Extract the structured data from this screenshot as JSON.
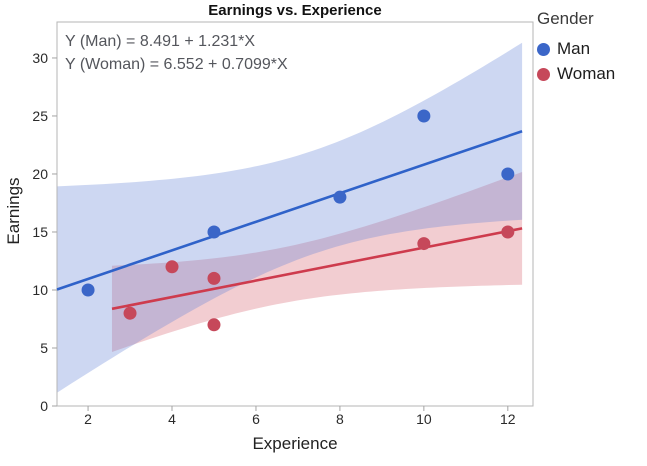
{
  "chart_data": {
    "type": "scatter",
    "title": "Earnings vs. Experience",
    "xlabel": "Experience",
    "ylabel": "Earnings",
    "legend_title": "Gender",
    "legend_position": "right",
    "grid": false,
    "xlim": [
      1.26,
      12.6
    ],
    "ylim": [
      0,
      33.1
    ],
    "x_ticks": [
      2,
      4,
      6,
      8,
      10,
      12
    ],
    "y_ticks": [
      0,
      5,
      10,
      15,
      20,
      25,
      30
    ],
    "annotations": [
      "Y (Man) = 8.491 + 1.231*X",
      "Y (Woman) = 6.552 + 0.7099*X"
    ],
    "frame_color": "#b5b5b5",
    "tick_color": "#a3a3a3",
    "tick_label_color": "#2a2a2a",
    "series": [
      {
        "name": "Man",
        "color": "#3B66C8",
        "line_color": "#2F62C9",
        "band_color": "rgba(99,130,216,0.32)",
        "fit": {
          "intercept": 8.491,
          "slope": 1.231
        },
        "fit_x_range": [
          1.26,
          12.34
        ],
        "ci_level": 0.95,
        "points": [
          [
            2,
            10
          ],
          [
            5,
            15
          ],
          [
            8,
            18
          ],
          [
            10,
            25
          ],
          [
            12,
            20
          ]
        ]
      },
      {
        "name": "Woman",
        "color": "#C6485A",
        "line_color": "#CE3B4D",
        "band_color": "rgba(213,90,104,0.30)",
        "fit": {
          "intercept": 6.552,
          "slope": 0.7099
        },
        "fit_x_range": [
          2.57,
          12.34
        ],
        "ci_level": 0.95,
        "points": [
          [
            3,
            8
          ],
          [
            4,
            12
          ],
          [
            5,
            11
          ],
          [
            5,
            7
          ],
          [
            10,
            14
          ],
          [
            12,
            15
          ]
        ]
      }
    ]
  }
}
